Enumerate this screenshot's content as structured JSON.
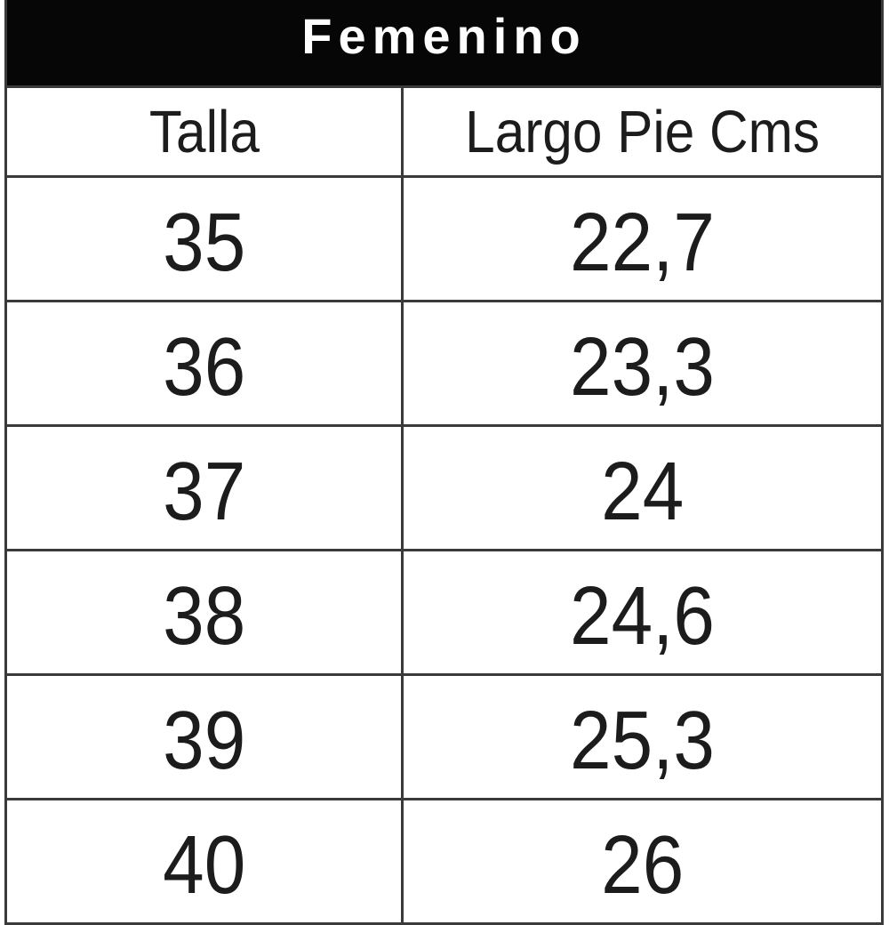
{
  "table": {
    "title": "Femenino",
    "columns": [
      "Talla",
      "Largo Pie Cms"
    ],
    "rows": [
      {
        "size": "35",
        "length": "22,7"
      },
      {
        "size": "36",
        "length": "23,3"
      },
      {
        "size": "37",
        "length": "24"
      },
      {
        "size": "38",
        "length": "24,6"
      },
      {
        "size": "39",
        "length": "25,3"
      },
      {
        "size": "40",
        "length": "26"
      }
    ]
  },
  "colors": {
    "title_bg": "#060606",
    "title_text": "#ffffff",
    "border": "#3a3a3a",
    "cell_text": "#1c1c1c",
    "background": "#ffffff"
  },
  "chart_data": {
    "type": "table",
    "title": "Femenino",
    "columns": [
      "Talla",
      "Largo Pie Cms"
    ],
    "rows": [
      [
        "35",
        "22,7"
      ],
      [
        "36",
        "23,3"
      ],
      [
        "37",
        "24"
      ],
      [
        "38",
        "24,6"
      ],
      [
        "39",
        "25,3"
      ],
      [
        "40",
        "26"
      ]
    ]
  }
}
